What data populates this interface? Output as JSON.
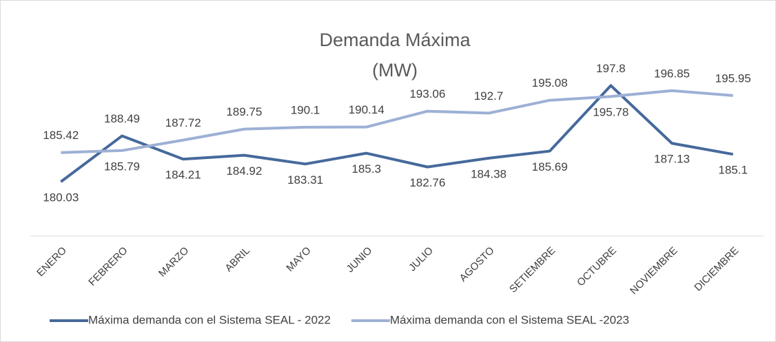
{
  "chart_data": {
    "type": "line",
    "title": [
      "Demanda Máxima",
      "(MW)"
    ],
    "categories": [
      "ENERO",
      "FEBRERO",
      "MARZO",
      "ABRIL",
      "MAYO",
      "JUNIO",
      "JULIO",
      "AGOSTO",
      "SETIEMBRE",
      "OCTUBRE",
      "NOVIEMBRE",
      "DICIEMBRE"
    ],
    "series": [
      {
        "name": "Máxima demanda con el Sistema SEAL - 2022",
        "color": "#46699b",
        "values": [
          180.03,
          188.49,
          184.21,
          184.92,
          183.31,
          185.3,
          182.76,
          184.38,
          185.69,
          197.8,
          187.13,
          185.1
        ]
      },
      {
        "name": "Máxima demanda con el Sistema SEAL -2023",
        "color": "#9db0d5",
        "values": [
          185.42,
          185.79,
          187.72,
          189.75,
          190.1,
          190.14,
          193.06,
          192.7,
          195.08,
          195.78,
          196.85,
          195.95
        ]
      }
    ],
    "ylim": [
      170,
      200
    ],
    "legend": "bottom"
  }
}
